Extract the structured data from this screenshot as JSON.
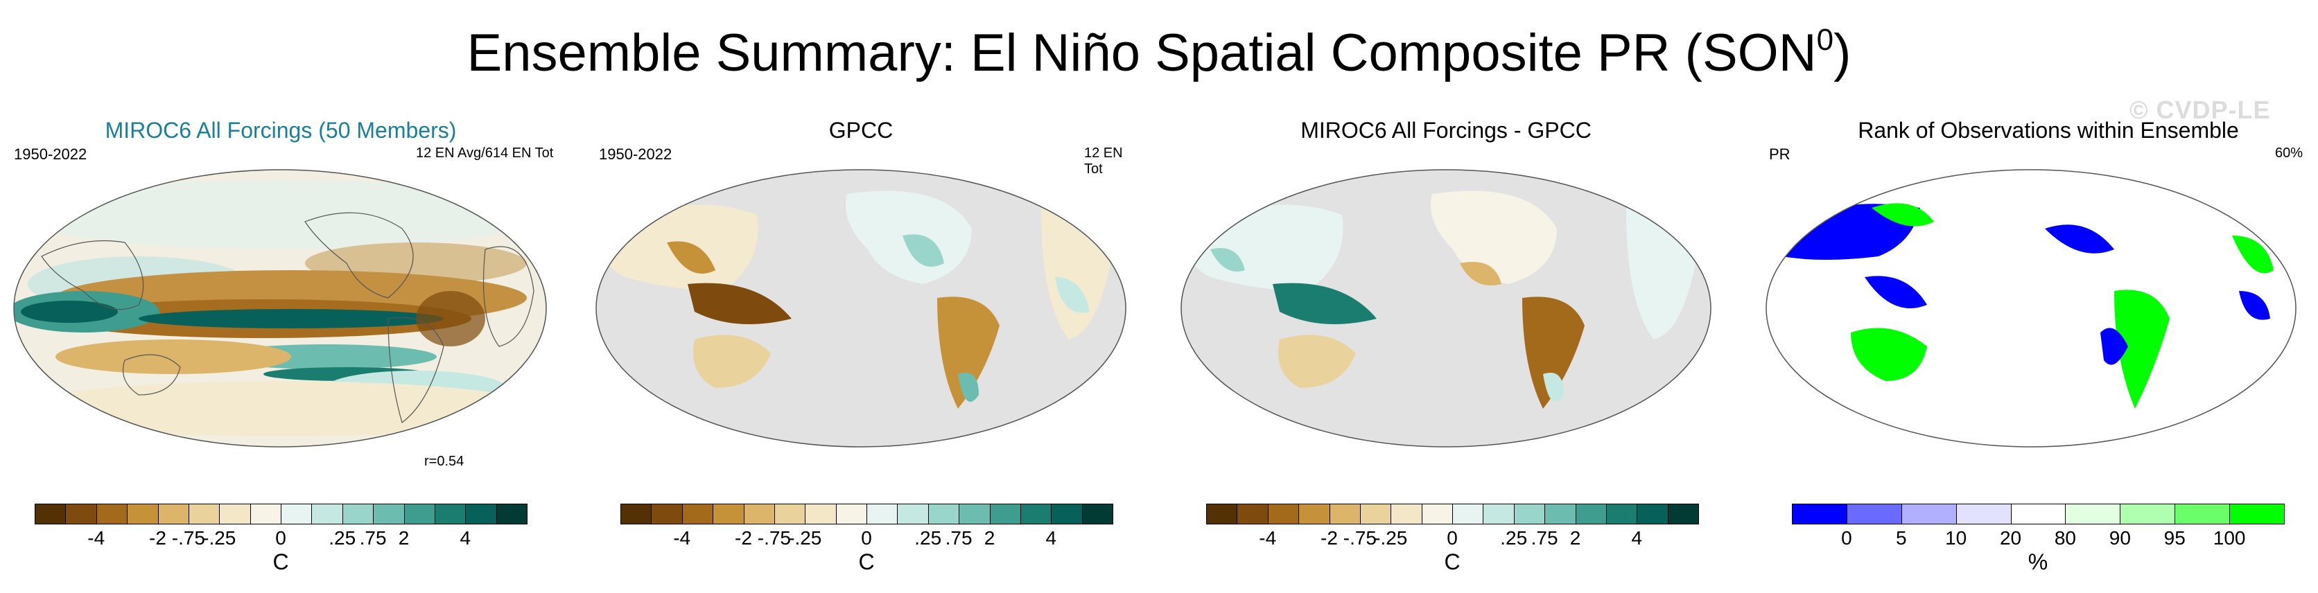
{
  "title": {
    "text": "Ensemble Summary: El Niño Spatial Composite PR (SON",
    "sup": "0",
    "close": ")"
  },
  "watermark": "© CVDP-LE",
  "panels": [
    {
      "title": "MIROC6 All Forcings (50 Members)",
      "left_label": "1950-2022",
      "right_label": "12 EN Avg/614 EN Tot",
      "corr": "r=0.54",
      "title_color": "#1a7f9a"
    },
    {
      "title": "GPCC",
      "left_label": "1950-2022",
      "right_label": "12 EN Tot"
    },
    {
      "title": "MIROC6 All Forcings - GPCC"
    },
    {
      "title": "Rank of Observations within Ensemble",
      "left_label": "PR",
      "right_label": "60%"
    }
  ],
  "colorbars": [
    {
      "ticks": [
        "-4",
        "-2",
        "-.75",
        "-.25",
        "0",
        ".25",
        ".75",
        "2",
        "4"
      ],
      "unit": "C",
      "colors": [
        "#543005",
        "#7f4a0d",
        "#a46a1c",
        "#c69239",
        "#dcb56a",
        "#ead29d",
        "#f3e7c8",
        "#f7f3e6",
        "#e7f4f1",
        "#c5e8e2",
        "#99d5cb",
        "#6dbcb0",
        "#3f9d90",
        "#1b7d70",
        "#07615a",
        "#013b33"
      ]
    },
    {
      "ticks": [
        "-4",
        "-2",
        "-.75",
        "-.25",
        "0",
        ".25",
        ".75",
        "2",
        "4"
      ],
      "unit": "C",
      "colors": [
        "#543005",
        "#7f4a0d",
        "#a46a1c",
        "#c69239",
        "#dcb56a",
        "#ead29d",
        "#f3e7c8",
        "#f7f3e6",
        "#e7f4f1",
        "#c5e8e2",
        "#99d5cb",
        "#6dbcb0",
        "#3f9d90",
        "#1b7d70",
        "#07615a",
        "#013b33"
      ]
    },
    {
      "ticks": [
        "-4",
        "-2",
        "-.75",
        "-.25",
        "0",
        ".25",
        ".75",
        "2",
        "4"
      ],
      "unit": "C",
      "colors": [
        "#543005",
        "#7f4a0d",
        "#a46a1c",
        "#c69239",
        "#dcb56a",
        "#ead29d",
        "#f3e7c8",
        "#f7f3e6",
        "#e7f4f1",
        "#c5e8e2",
        "#99d5cb",
        "#6dbcb0",
        "#3f9d90",
        "#1b7d70",
        "#07615a",
        "#013b33"
      ]
    },
    {
      "ticks": [
        "0",
        "5",
        "10",
        "20",
        "80",
        "90",
        "95",
        "100"
      ],
      "unit": "%",
      "colors": [
        "#0000ff",
        "#6a6aff",
        "#b0b0ff",
        "#e2e2ff",
        "#ffffff",
        "#e2ffe2",
        "#b0ffb0",
        "#6aff6a",
        "#00ff00"
      ]
    }
  ]
}
